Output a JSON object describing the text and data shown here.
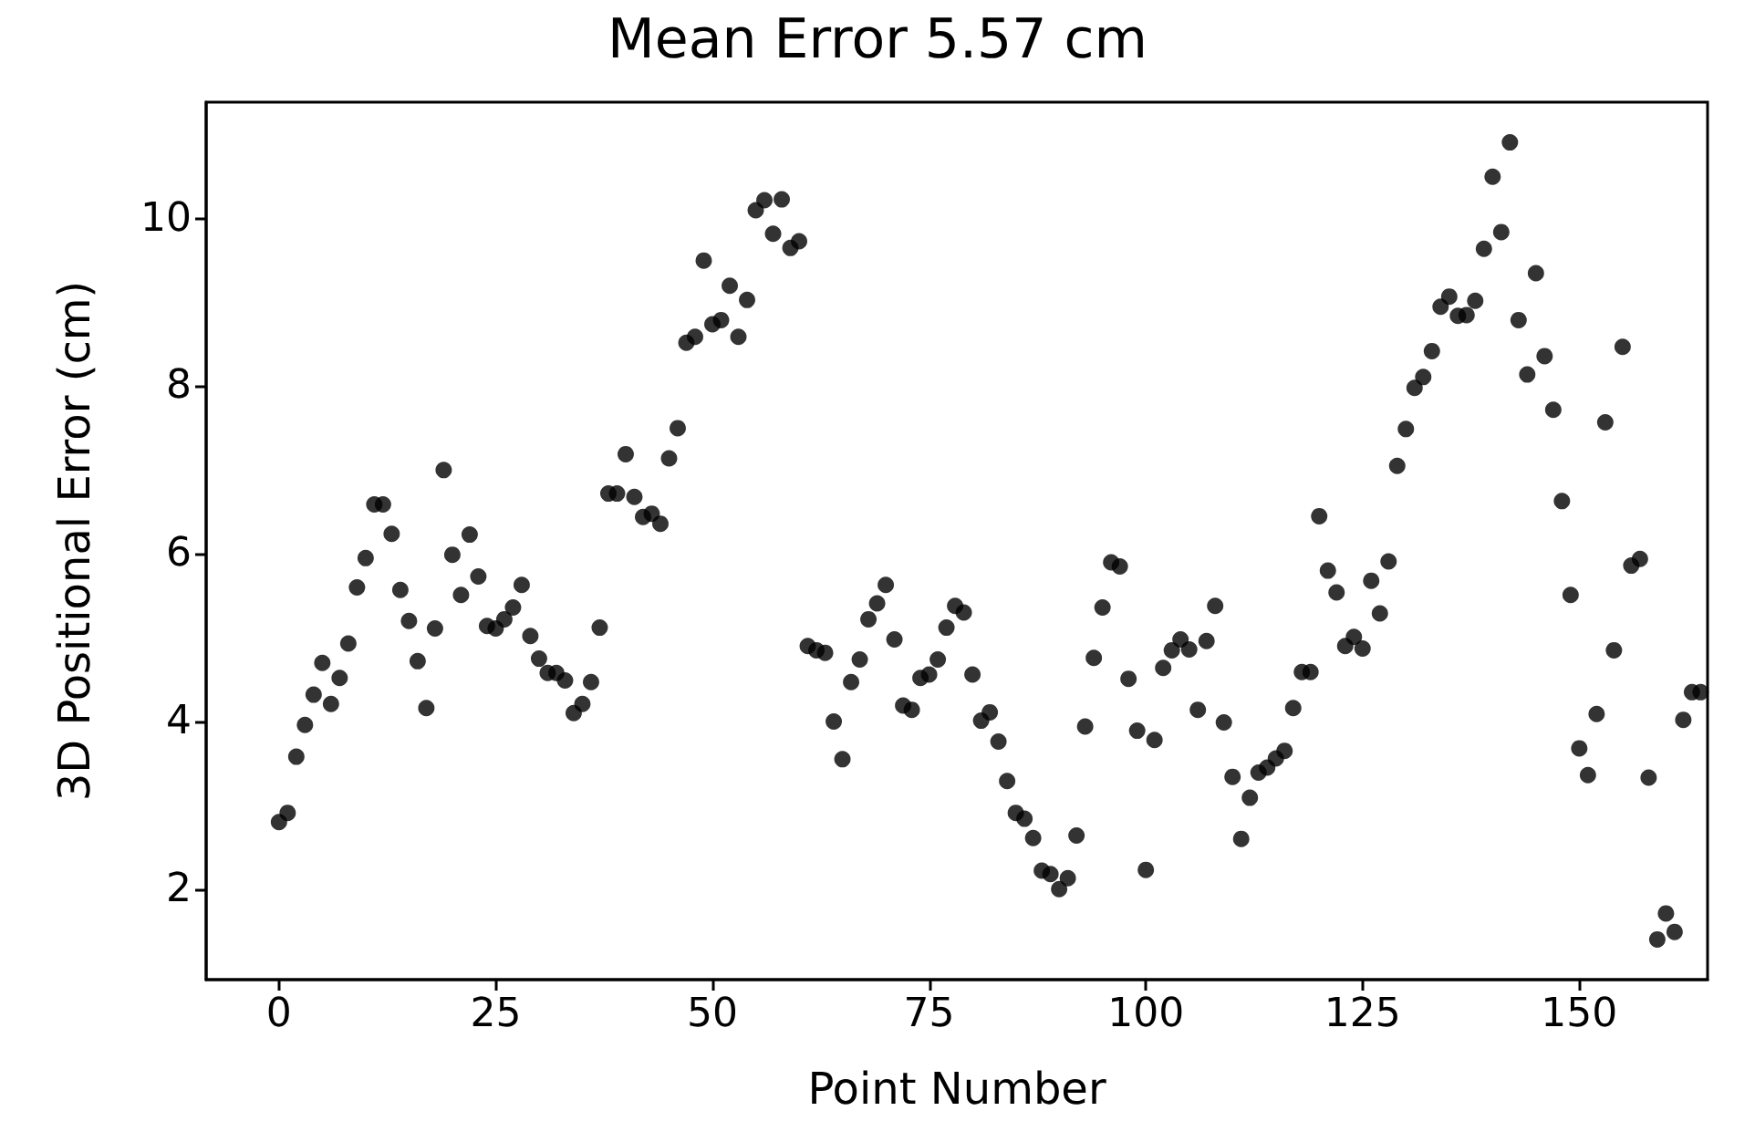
{
  "chart_data": {
    "type": "scatter",
    "title": "Mean Error 5.57 cm",
    "xlabel": "Point Number",
    "ylabel": "3D Positional Error (cm)",
    "x": [
      0,
      1,
      2,
      3,
      4,
      5,
      6,
      7,
      8,
      9,
      10,
      11,
      12,
      13,
      14,
      15,
      16,
      17,
      18,
      19,
      20,
      21,
      22,
      23,
      24,
      25,
      26,
      27,
      28,
      29,
      30,
      31,
      32,
      33,
      34,
      35,
      36,
      37,
      38,
      39,
      40,
      41,
      42,
      43,
      44,
      45,
      46,
      47,
      48,
      49,
      50,
      51,
      52,
      53,
      54,
      55,
      56,
      57,
      58,
      59,
      60,
      61,
      62,
      63,
      64,
      65,
      66,
      67,
      68,
      69,
      70,
      71,
      72,
      73,
      74,
      75,
      76,
      77,
      78,
      79,
      80,
      81,
      82,
      83,
      84,
      85,
      86,
      87,
      88,
      89,
      90,
      91,
      92,
      93,
      94,
      95,
      96,
      97,
      98,
      99,
      100,
      101,
      102,
      103,
      104,
      105,
      106,
      107,
      108,
      109,
      110,
      111,
      112,
      113,
      114,
      115,
      116,
      117,
      118,
      119,
      120,
      121,
      122,
      123,
      124,
      125,
      126,
      127,
      128,
      129,
      130,
      131,
      132,
      133,
      134,
      135,
      136,
      137,
      138,
      139,
      140,
      141,
      142,
      143,
      144,
      145,
      146,
      147,
      148,
      149,
      150,
      151,
      152,
      153,
      154,
      155,
      156,
      157,
      158,
      159,
      160,
      161,
      162,
      163,
      164
    ],
    "series": [
      {
        "color": "#000000",
        "values": [
          2.8,
          2.91,
          3.58,
          3.96,
          4.32,
          4.7,
          4.21,
          4.52,
          4.93,
          5.6,
          5.95,
          6.59,
          6.59,
          6.24,
          5.57,
          5.2,
          4.72,
          4.16,
          5.11,
          7.0,
          5.99,
          5.51,
          6.23,
          5.73,
          5.14,
          5.11,
          5.22,
          5.36,
          5.63,
          5.02,
          4.75,
          4.58,
          4.58,
          4.49,
          4.1,
          4.21,
          4.47,
          5.12,
          6.72,
          6.72,
          7.19,
          6.68,
          6.44,
          6.48,
          6.36,
          7.14,
          7.5,
          8.52,
          8.59,
          9.5,
          8.74,
          8.79,
          9.2,
          8.59,
          9.03,
          10.1,
          10.22,
          9.82,
          10.23,
          9.65,
          9.73,
          4.9,
          4.85,
          4.82,
          4.0,
          3.55,
          4.47,
          4.74,
          5.22,
          5.41,
          5.63,
          4.98,
          4.19,
          4.14,
          4.52,
          4.56,
          4.74,
          5.12,
          5.38,
          5.3,
          4.56,
          4.01,
          4.11,
          3.76,
          3.29,
          2.91,
          2.84,
          2.61,
          2.22,
          2.18,
          2.0,
          2.13,
          2.64,
          3.94,
          4.76,
          5.36,
          5.9,
          5.85,
          4.51,
          3.89,
          2.23,
          3.78,
          4.64,
          4.85,
          4.98,
          4.86,
          4.14,
          4.96,
          5.38,
          3.99,
          3.34,
          2.6,
          3.09,
          3.39,
          3.45,
          3.56,
          3.65,
          4.16,
          4.59,
          4.59,
          6.45,
          5.8,
          5.54,
          4.9,
          5.01,
          4.87,
          5.68,
          5.29,
          5.91,
          7.05,
          7.49,
          7.98,
          8.11,
          8.42,
          8.95,
          9.07,
          8.84,
          8.85,
          9.02,
          9.64,
          10.5,
          9.84,
          10.91,
          8.79,
          8.14,
          9.35,
          8.36,
          7.72,
          6.63,
          5.51,
          3.68,
          3.36,
          4.09,
          7.57,
          4.85,
          8.47,
          5.86,
          5.94,
          3.33,
          1.4,
          1.71,
          1.49,
          4.02,
          4.35,
          4.35
        ]
      }
    ],
    "xlim": [
      -8.4,
      164.8
    ],
    "xticks": [
      0,
      25,
      50,
      75,
      100,
      125,
      150
    ],
    "ylim": [
      0.92,
      11.39
    ],
    "yticks": [
      2,
      4,
      6,
      8,
      10
    ],
    "marker": "circle",
    "grid": false
  }
}
